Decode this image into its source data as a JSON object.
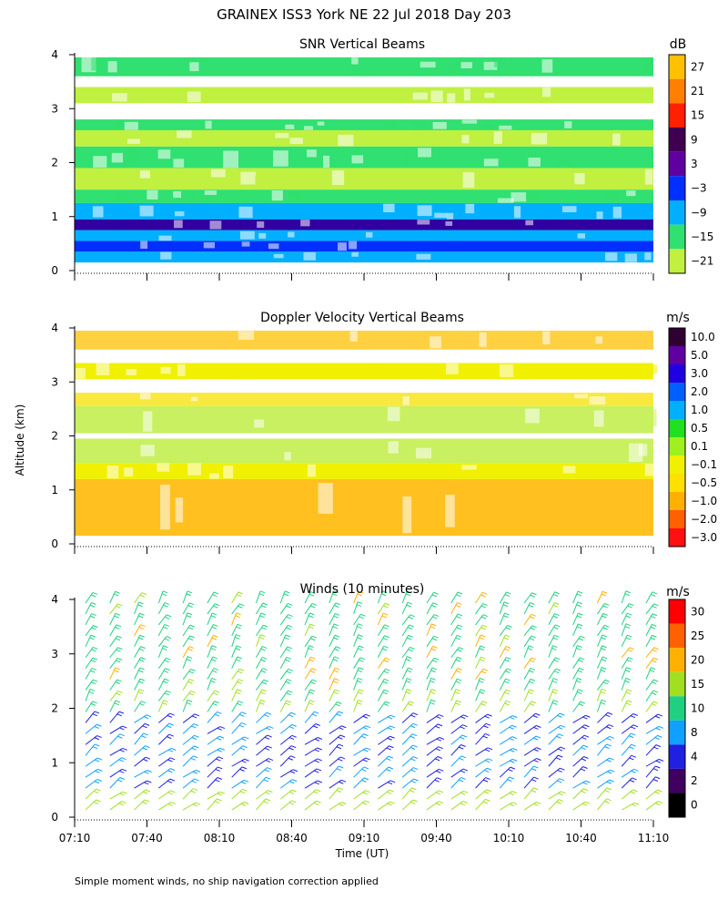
{
  "title": "GRAINEX ISS3 York NE  22 Jul 2018 Day 203",
  "ylabel": "Altitude (km)",
  "xlabel": "Time (UT)",
  "footnote": "Simple moment winds, no ship navigation correction applied",
  "colors": {
    "axis": "#000000",
    "background": "#ffffff"
  },
  "chart_data": [
    {
      "type": "heatmap",
      "title": "SNR Vertical Beams",
      "colorbar_unit": "dB",
      "x_ticks": [
        "07:10",
        "07:40",
        "08:10",
        "08:40",
        "09:10",
        "09:40",
        "10:10",
        "10:40",
        "11:10"
      ],
      "y_ticks": [
        "0",
        "1",
        "2",
        "3",
        "4"
      ],
      "ylim": [
        0,
        4
      ],
      "colorbar": {
        "labels": [
          "27",
          "21",
          "15",
          "9",
          "3",
          "−3",
          "−9",
          "−15",
          "−21"
        ],
        "colors": [
          "#ffc000",
          "#ff8000",
          "#ff2000",
          "#400050",
          "#6000a0",
          "#0030ff",
          "#00b0ff",
          "#30e070",
          "#c0f040"
        ]
      },
      "layers": [
        {
          "y0": 0.15,
          "y1": 0.35,
          "color": "#00b0ff"
        },
        {
          "y0": 0.35,
          "y1": 0.55,
          "color": "#0030ff"
        },
        {
          "y0": 0.55,
          "y1": 0.75,
          "color": "#00b0ff"
        },
        {
          "y0": 0.75,
          "y1": 0.95,
          "color": "#3000a0"
        },
        {
          "y0": 0.95,
          "y1": 1.25,
          "color": "#00b0ff"
        },
        {
          "y0": 1.25,
          "y1": 1.5,
          "color": "#30e070"
        },
        {
          "y0": 1.5,
          "y1": 1.9,
          "color": "#c0f040"
        },
        {
          "y0": 1.9,
          "y1": 2.3,
          "color": "#30e070"
        },
        {
          "y0": 2.3,
          "y1": 2.6,
          "color": "#c0f040"
        },
        {
          "y0": 2.6,
          "y1": 2.8,
          "color": "#30e070"
        },
        {
          "y0": 3.1,
          "y1": 3.4,
          "color": "#c0f040"
        },
        {
          "y0": 3.6,
          "y1": 3.95,
          "color": "#30e070"
        }
      ]
    },
    {
      "type": "heatmap",
      "title": "Doppler Velocity Vertical Beams",
      "colorbar_unit": "m/s",
      "x_ticks": [
        "07:10",
        "07:40",
        "08:10",
        "08:40",
        "09:10",
        "09:40",
        "10:10",
        "10:40",
        "11:10"
      ],
      "y_ticks": [
        "0",
        "1",
        "2",
        "3",
        "4"
      ],
      "ylim": [
        0,
        4
      ],
      "colorbar": {
        "labels": [
          "10.0",
          "5.0",
          "3.0",
          "2.0",
          "1.0",
          "0.5",
          "0.1",
          "−0.1",
          "−0.5",
          "−1.0",
          "−2.0",
          "−3.0"
        ],
        "colors": [
          "#300030",
          "#6000a0",
          "#2000e0",
          "#0060ff",
          "#00b0ff",
          "#20e020",
          "#a0f020",
          "#f0f000",
          "#ffe000",
          "#ffb000",
          "#ff6000",
          "#ff1010"
        ]
      },
      "layers": [
        {
          "y0": 0.15,
          "y1": 1.2,
          "color": "#ffc020"
        },
        {
          "y0": 1.2,
          "y1": 1.5,
          "color": "#f0f000"
        },
        {
          "y0": 1.5,
          "y1": 1.95,
          "color": "#c8f060"
        },
        {
          "y0": 2.05,
          "y1": 2.55,
          "color": "#c8f060"
        },
        {
          "y0": 2.55,
          "y1": 2.8,
          "color": "#f8e840"
        },
        {
          "y0": 3.05,
          "y1": 3.35,
          "color": "#f0f000"
        },
        {
          "y0": 3.6,
          "y1": 3.95,
          "color": "#ffd040"
        }
      ]
    },
    {
      "type": "scatter",
      "title": "Winds (10 minutes)",
      "colorbar_unit": "m/s",
      "x_ticks": [
        "07:10",
        "07:40",
        "08:10",
        "08:40",
        "09:10",
        "09:40",
        "10:10",
        "10:40",
        "11:10"
      ],
      "y_ticks": [
        "0",
        "1",
        "2",
        "3",
        "4"
      ],
      "ylim": [
        0,
        4
      ],
      "colorbar": {
        "labels": [
          "30",
          "25",
          "20",
          "15",
          "10",
          "8",
          "4",
          "2",
          "0"
        ],
        "colors": [
          "#ff0000",
          "#ff6000",
          "#ffb000",
          "#a0e020",
          "#20d080",
          "#10a0ff",
          "#2020e0",
          "#400060",
          "#000000"
        ]
      },
      "barb_times_count": 24,
      "barb_heights_km": [
        0.2,
        0.4,
        0.6,
        0.8,
        1.0,
        1.2,
        1.4,
        1.6,
        1.8,
        2.0,
        2.2,
        2.4,
        2.6,
        2.8,
        3.0,
        3.2,
        3.4,
        3.6,
        3.8,
        4.0
      ]
    }
  ]
}
